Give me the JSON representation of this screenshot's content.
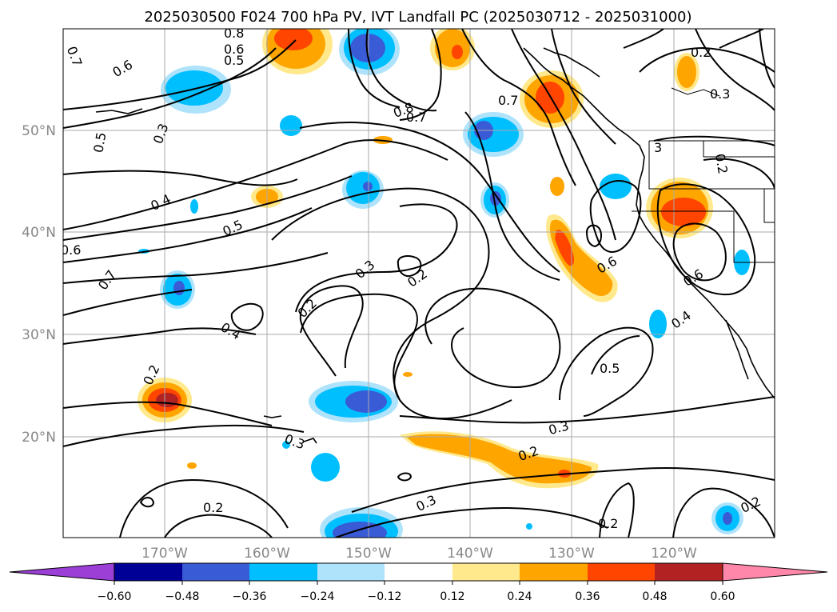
{
  "title": "2025030500 F024 700 hPa PV, IVT Landfall PC (2025030712 - 2025031000)",
  "lat_labels": [
    "50°N",
    "40°N",
    "30°N",
    "20°N"
  ],
  "lon_labels": [
    "170°W",
    "160°W",
    "150°W",
    "140°W",
    "130°W",
    "120°W"
  ],
  "colorbar": {
    "ticks": [
      "−0.60",
      "−0.48",
      "−0.36",
      "−0.24",
      "−0.12",
      "0.12",
      "0.24",
      "0.36",
      "0.48",
      "0.60"
    ],
    "colors": [
      "#9b3fd6",
      "#000096",
      "#3a5bd6",
      "#00bfff",
      "#aee3fb",
      "#ffffff",
      "#ffe98c",
      "#ffa500",
      "#ff4500",
      "#b22222",
      "#ff88aa"
    ]
  },
  "contour_labels": {
    "l01": "0.7",
    "l02": "0.6",
    "l03": "0.8",
    "l04": "0.6",
    "l05": "0.5",
    "l06": "0.2",
    "l07": "0.3",
    "l08": "0.7",
    "l09": "0.8",
    "l10": "0.7",
    "l11": "0.5",
    "l12": "0.3",
    "l13": "0.4",
    "l14": "0.5",
    "l15": "0.6",
    "l16": "0.7",
    "l17": "0.3",
    "l18": "0.2",
    "l19": "0.2",
    "l20": "0.4",
    "l21": "0.6",
    "l22": "0.6",
    "l23": "0.4",
    "l24": "0.5",
    "l25": "0.2",
    "l26": "0.3",
    "l27": "0.2",
    "l28": "0.3",
    "l29": "0.2",
    "l30": "0.2",
    "l31": "0.2",
    "l32": "3",
    "l33": "0.2",
    "l34": "0.3"
  }
}
